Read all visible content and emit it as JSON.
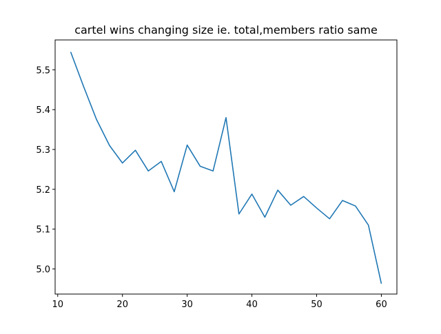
{
  "chart_data": {
    "type": "line",
    "title": "cartel wins changing size ie. total,members ratio same",
    "xlabel": "",
    "ylabel": "",
    "xlim": [
      9.6,
      62.4
    ],
    "ylim": [
      4.937,
      5.575
    ],
    "x_ticks": [
      10,
      20,
      30,
      40,
      50,
      60
    ],
    "y_ticks": [
      5.0,
      5.1,
      5.2,
      5.3,
      5.4,
      5.5
    ],
    "x_tick_labels": [
      "10",
      "20",
      "30",
      "40",
      "50",
      "60"
    ],
    "y_tick_labels": [
      "5.0",
      "5.1",
      "5.2",
      "5.3",
      "5.4",
      "5.5"
    ],
    "grid": false,
    "legend": "none",
    "series": [
      {
        "color": "#1f77b4",
        "x": [
          12,
          14,
          16,
          18,
          20,
          22,
          24,
          26,
          28,
          30,
          32,
          34,
          36,
          38,
          40,
          42,
          44,
          46,
          48,
          50,
          52,
          54,
          56,
          58,
          60
        ],
        "y": [
          5.545,
          5.458,
          5.375,
          5.31,
          5.266,
          5.298,
          5.246,
          5.27,
          5.194,
          5.311,
          5.258,
          5.246,
          5.38,
          5.138,
          5.188,
          5.13,
          5.198,
          5.16,
          5.182,
          5.153,
          5.126,
          5.172,
          5.158,
          5.11,
          4.963
        ]
      }
    ]
  }
}
